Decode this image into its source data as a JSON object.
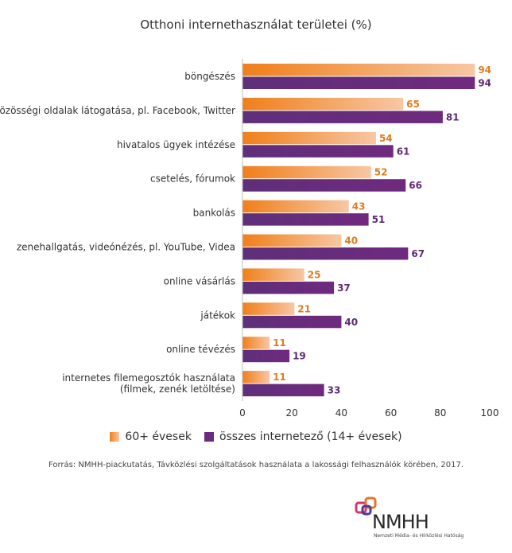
{
  "chart_data": {
    "type": "bar",
    "title": "Otthoni internethasználat területei (%)",
    "categories": [
      "böngészés",
      "közösségi oldalak látogatása, pl. Facebook, Twitter",
      "hivatalos ügyek intézése",
      "csetelés, fórumok",
      "bankolás",
      "zenehallgatás, videónézés, pl. YouTube, Videa",
      "online vásárlás",
      "játékok",
      "online tévézés",
      "internetes filemegosztók használata\n(filmek, zenék letöltése)"
    ],
    "series": [
      {
        "name": "60+ évesek",
        "values": [
          94,
          65,
          54,
          52,
          43,
          40,
          25,
          21,
          11,
          11
        ],
        "color": "#f07f1a",
        "label_color": "#e07b1f"
      },
      {
        "name": "összes internetező (14+ évesek)",
        "values": [
          94,
          81,
          61,
          66,
          51,
          67,
          37,
          40,
          19,
          33
        ],
        "color": "#6a2a7e",
        "label_color": "#5e2a73"
      }
    ],
    "x_ticks": [
      0,
      20,
      40,
      60,
      80,
      100
    ],
    "xlim": [
      0,
      100
    ],
    "orientation": "horizontal",
    "legend_position": "bottom",
    "grid": false
  },
  "source": "Forrás: NMHH-piackutatás, Távközlési szolgáltatások használata a lakossági felhasználók körében, 2017.",
  "logo": {
    "text": "NMHH",
    "subtitle": "Nemzeti Média- és Hírközlési Hatóság"
  }
}
